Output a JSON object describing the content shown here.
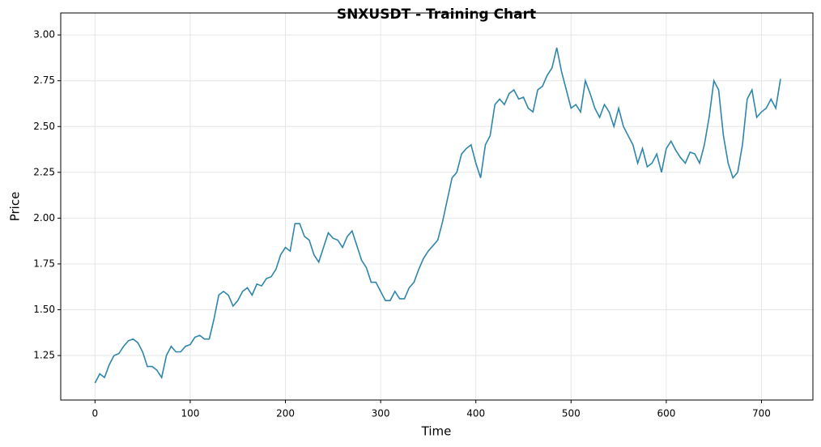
{
  "chart_data": {
    "type": "line",
    "title": "SNXUSDT - Training Chart",
    "xlabel": "Time",
    "ylabel": "Price",
    "x": [
      0,
      5,
      10,
      15,
      20,
      25,
      30,
      35,
      40,
      45,
      50,
      55,
      60,
      65,
      70,
      75,
      80,
      85,
      90,
      95,
      100,
      105,
      110,
      115,
      120,
      125,
      130,
      135,
      140,
      145,
      150,
      155,
      160,
      165,
      170,
      175,
      180,
      185,
      190,
      195,
      200,
      205,
      210,
      215,
      220,
      225,
      230,
      235,
      240,
      245,
      250,
      255,
      260,
      265,
      270,
      275,
      280,
      285,
      290,
      295,
      300,
      305,
      310,
      315,
      320,
      325,
      330,
      335,
      340,
      345,
      350,
      355,
      360,
      365,
      370,
      375,
      380,
      385,
      390,
      395,
      400,
      405,
      410,
      415,
      420,
      425,
      430,
      435,
      440,
      445,
      450,
      455,
      460,
      465,
      470,
      475,
      480,
      485,
      490,
      495,
      500,
      505,
      510,
      515,
      520,
      525,
      530,
      535,
      540,
      545,
      550,
      555,
      560,
      565,
      570,
      575,
      580,
      585,
      590,
      595,
      600,
      605,
      610,
      615,
      620,
      625,
      630,
      635,
      640,
      645,
      650,
      655,
      660,
      665,
      670,
      675,
      680,
      685,
      690,
      695,
      700,
      705,
      710,
      715,
      720
    ],
    "values": [
      1.1,
      1.15,
      1.13,
      1.2,
      1.25,
      1.26,
      1.3,
      1.33,
      1.34,
      1.32,
      1.27,
      1.19,
      1.19,
      1.17,
      1.13,
      1.25,
      1.3,
      1.27,
      1.27,
      1.3,
      1.31,
      1.35,
      1.36,
      1.34,
      1.34,
      1.45,
      1.58,
      1.6,
      1.58,
      1.52,
      1.55,
      1.6,
      1.62,
      1.58,
      1.64,
      1.63,
      1.67,
      1.68,
      1.72,
      1.8,
      1.84,
      1.82,
      1.97,
      1.97,
      1.9,
      1.88,
      1.8,
      1.76,
      1.84,
      1.92,
      1.89,
      1.88,
      1.84,
      1.9,
      1.93,
      1.85,
      1.77,
      1.73,
      1.65,
      1.65,
      1.6,
      1.55,
      1.55,
      1.6,
      1.56,
      1.56,
      1.62,
      1.65,
      1.72,
      1.78,
      1.82,
      1.85,
      1.88,
      1.98,
      2.1,
      2.22,
      2.25,
      2.35,
      2.38,
      2.4,
      2.3,
      2.22,
      2.4,
      2.45,
      2.62,
      2.65,
      2.62,
      2.68,
      2.7,
      2.65,
      2.66,
      2.6,
      2.58,
      2.7,
      2.72,
      2.78,
      2.82,
      2.93,
      2.8,
      2.7,
      2.6,
      2.62,
      2.58,
      2.75,
      2.68,
      2.6,
      2.55,
      2.62,
      2.58,
      2.5,
      2.6,
      2.5,
      2.45,
      2.4,
      2.3,
      2.38,
      2.28,
      2.3,
      2.35,
      2.25,
      2.38,
      2.42,
      2.37,
      2.33,
      2.3,
      2.36,
      2.35,
      2.3,
      2.4,
      2.55,
      2.75,
      2.7,
      2.45,
      2.3,
      2.22,
      2.25,
      2.4,
      2.65,
      2.7,
      2.55,
      2.58,
      2.6,
      2.65,
      2.6,
      2.76
    ],
    "color": "#2e86ab",
    "xlim": [
      -36,
      754
    ],
    "ylim": [
      1.007,
      3.12
    ],
    "xticks": [
      0,
      100,
      200,
      300,
      400,
      500,
      600,
      700
    ],
    "yticks": [
      1.25,
      {
        "value": 1.5,
        "label": "1.50"
      },
      1.75,
      {
        "value": 2,
        "label": "2.00"
      },
      2.25,
      {
        "value": 2.5,
        "label": "2.50"
      },
      2.75,
      {
        "value": 3,
        "label": "3.00"
      }
    ],
    "grid": true
  }
}
